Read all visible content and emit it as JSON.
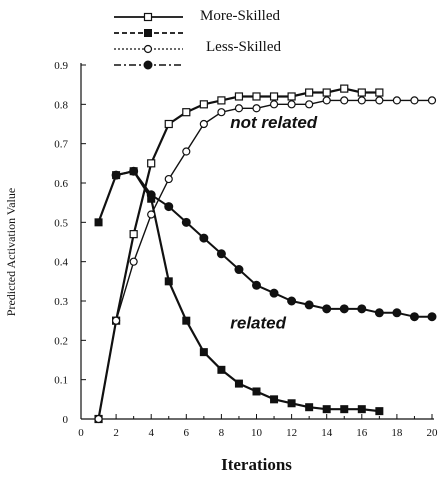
{
  "chart_data": {
    "type": "line",
    "title": "",
    "xlabel": "Iterations",
    "ylabel": "Predicted Activation Value",
    "xlim": [
      0,
      20
    ],
    "ylim": [
      0,
      0.9
    ],
    "xticks": [
      "0",
      "2",
      "4",
      "6",
      "8",
      "10",
      "12",
      "14",
      "16",
      "18",
      "20"
    ],
    "yticks": [
      "0",
      "0.1",
      "0.2",
      "0.3",
      "0.4",
      "0.5",
      "0.6",
      "0.7",
      "0.8",
      "0.9"
    ],
    "grid": false,
    "legend_position": "top",
    "legend": [
      {
        "label": "More-Skilled",
        "groups": [
          "more-not-related",
          "more-related"
        ]
      },
      {
        "label": "Less-Skilled",
        "groups": [
          "less-not-related",
          "less-related"
        ]
      }
    ],
    "annotations": [
      {
        "text": "not related",
        "x": 10.5,
        "y": 0.755
      },
      {
        "text": "related",
        "x": 10.5,
        "y": 0.245
      }
    ],
    "series": [
      {
        "id": "more-not-related",
        "group": "More-Skilled",
        "condition": "not related",
        "marker": "open-square",
        "x": [
          1,
          2,
          3,
          4,
          5,
          6,
          7,
          8,
          9,
          10,
          11,
          12,
          13,
          14,
          15,
          16,
          17
        ],
        "values": [
          0.0,
          0.25,
          0.47,
          0.65,
          0.75,
          0.78,
          0.8,
          0.81,
          0.82,
          0.82,
          0.82,
          0.82,
          0.83,
          0.83,
          0.84,
          0.83,
          0.83
        ]
      },
      {
        "id": "more-related",
        "group": "More-Skilled",
        "condition": "related",
        "marker": "filled-square",
        "x": [
          1,
          2,
          3,
          4,
          5,
          6,
          7,
          8,
          9,
          10,
          11,
          12,
          13,
          14,
          15,
          16,
          17
        ],
        "values": [
          0.5,
          0.62,
          0.63,
          0.56,
          0.35,
          0.25,
          0.17,
          0.125,
          0.09,
          0.07,
          0.05,
          0.04,
          0.03,
          0.025,
          0.025,
          0.025,
          0.02
        ]
      },
      {
        "id": "less-not-related",
        "group": "Less-Skilled",
        "condition": "not related",
        "marker": "open-circle",
        "x": [
          1,
          2,
          3,
          4,
          5,
          6,
          7,
          8,
          9,
          10,
          11,
          12,
          13,
          14,
          15,
          16,
          17,
          18,
          19,
          20
        ],
        "values": [
          0.0,
          0.25,
          0.4,
          0.52,
          0.61,
          0.68,
          0.75,
          0.78,
          0.79,
          0.79,
          0.8,
          0.8,
          0.8,
          0.81,
          0.81,
          0.81,
          0.81,
          0.81,
          0.81,
          0.81
        ]
      },
      {
        "id": "less-related",
        "group": "Less-Skilled",
        "condition": "related",
        "marker": "filled-circle",
        "x": [
          2,
          3,
          4,
          5,
          6,
          7,
          8,
          9,
          10,
          11,
          12,
          13,
          14,
          15,
          16,
          17,
          18,
          19,
          20
        ],
        "values": [
          0.62,
          0.63,
          0.57,
          0.54,
          0.5,
          0.46,
          0.42,
          0.38,
          0.34,
          0.32,
          0.3,
          0.29,
          0.28,
          0.28,
          0.28,
          0.27,
          0.27,
          0.26,
          0.26
        ]
      }
    ]
  }
}
